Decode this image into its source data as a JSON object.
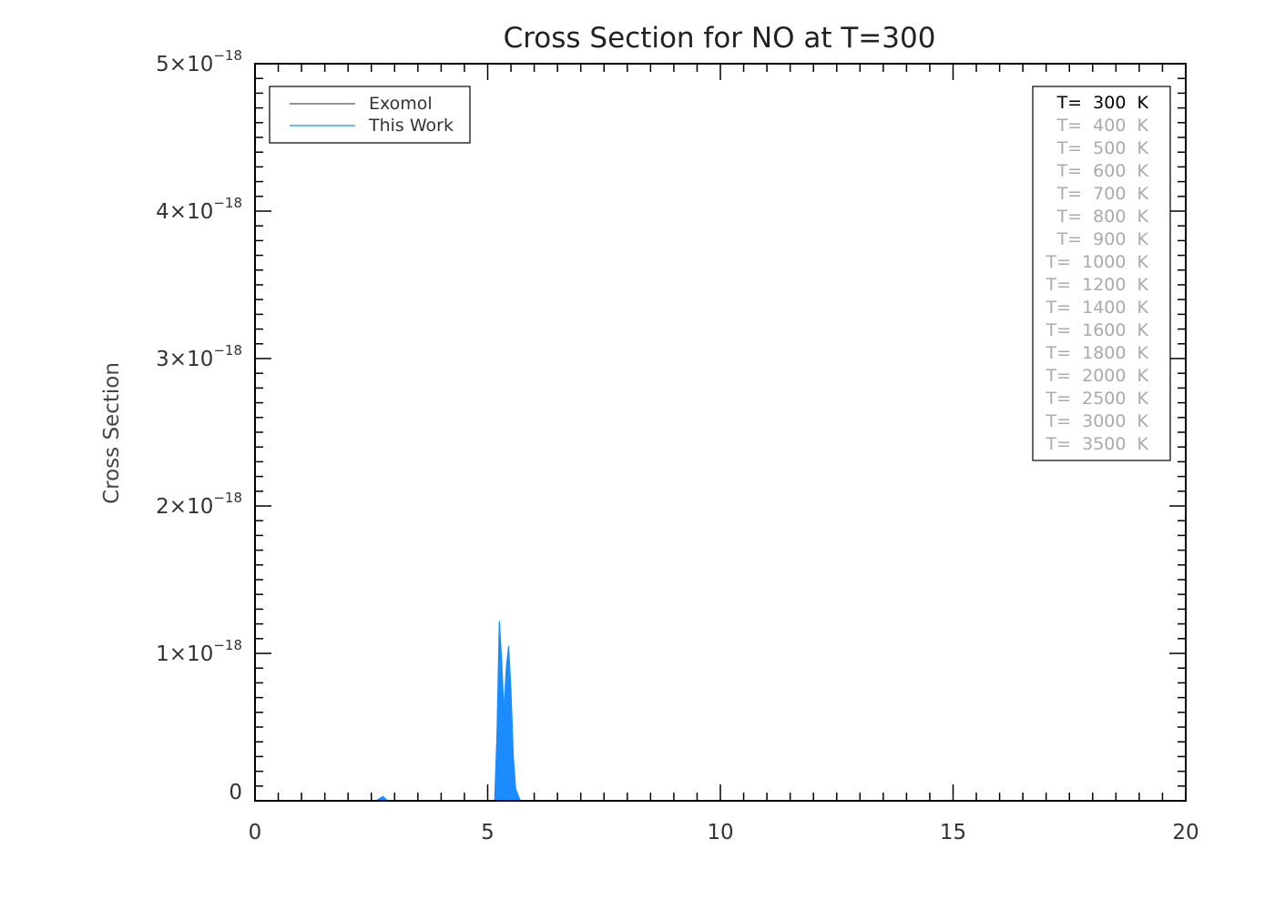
{
  "chart_data": {
    "type": "line",
    "title": "Cross Section for NO at T=300",
    "xlabel": "",
    "ylabel": "Cross Section",
    "xlim": [
      0,
      20
    ],
    "ylim": [
      0,
      5e-18
    ],
    "x_ticks": [
      "0",
      "5",
      "10",
      "15",
      "20"
    ],
    "y_ticks": [
      {
        "mant": "0",
        "exp": ""
      },
      {
        "mant": "1×10",
        "exp": "−18"
      },
      {
        "mant": "2×10",
        "exp": "−18"
      },
      {
        "mant": "3×10",
        "exp": "−18"
      },
      {
        "mant": "4×10",
        "exp": "−18"
      },
      {
        "mant": "5×10",
        "exp": "−18"
      }
    ],
    "grid": false,
    "legend_position": "top-left",
    "series": [
      {
        "name": "Exomol",
        "color": "#555555",
        "x": [
          0,
          20
        ],
        "y": [
          0,
          0
        ]
      },
      {
        "name": "This Work",
        "color": "#1a8cff",
        "x": [
          0,
          2.6,
          2.7,
          2.75,
          2.85,
          5.15,
          5.2,
          5.25,
          5.3,
          5.35,
          5.4,
          5.45,
          5.5,
          5.55,
          5.6,
          5.7,
          20
        ],
        "y": [
          0,
          0,
          2e-20,
          3e-20,
          0,
          0,
          4.5e-19,
          1.22e-18,
          9.5e-19,
          6e-19,
          9e-19,
          1.05e-18,
          7.5e-19,
          3e-19,
          8e-20,
          0,
          0
        ]
      }
    ],
    "temperature_legend": {
      "active": "T=  300  K",
      "active_color": "#000000",
      "inactive_color": "#aaaaaa",
      "items": [
        "T=  300  K",
        "T=  400  K",
        "T=  500  K",
        "T=  600  K",
        "T=  700  K",
        "T=  800  K",
        "T=  900  K",
        "T=  1000  K",
        "T=  1200  K",
        "T=  1400  K",
        "T=  1600  K",
        "T=  1800  K",
        "T=  2000  K",
        "T=  2500  K",
        "T=  3000  K",
        "T=  3500  K"
      ]
    }
  }
}
